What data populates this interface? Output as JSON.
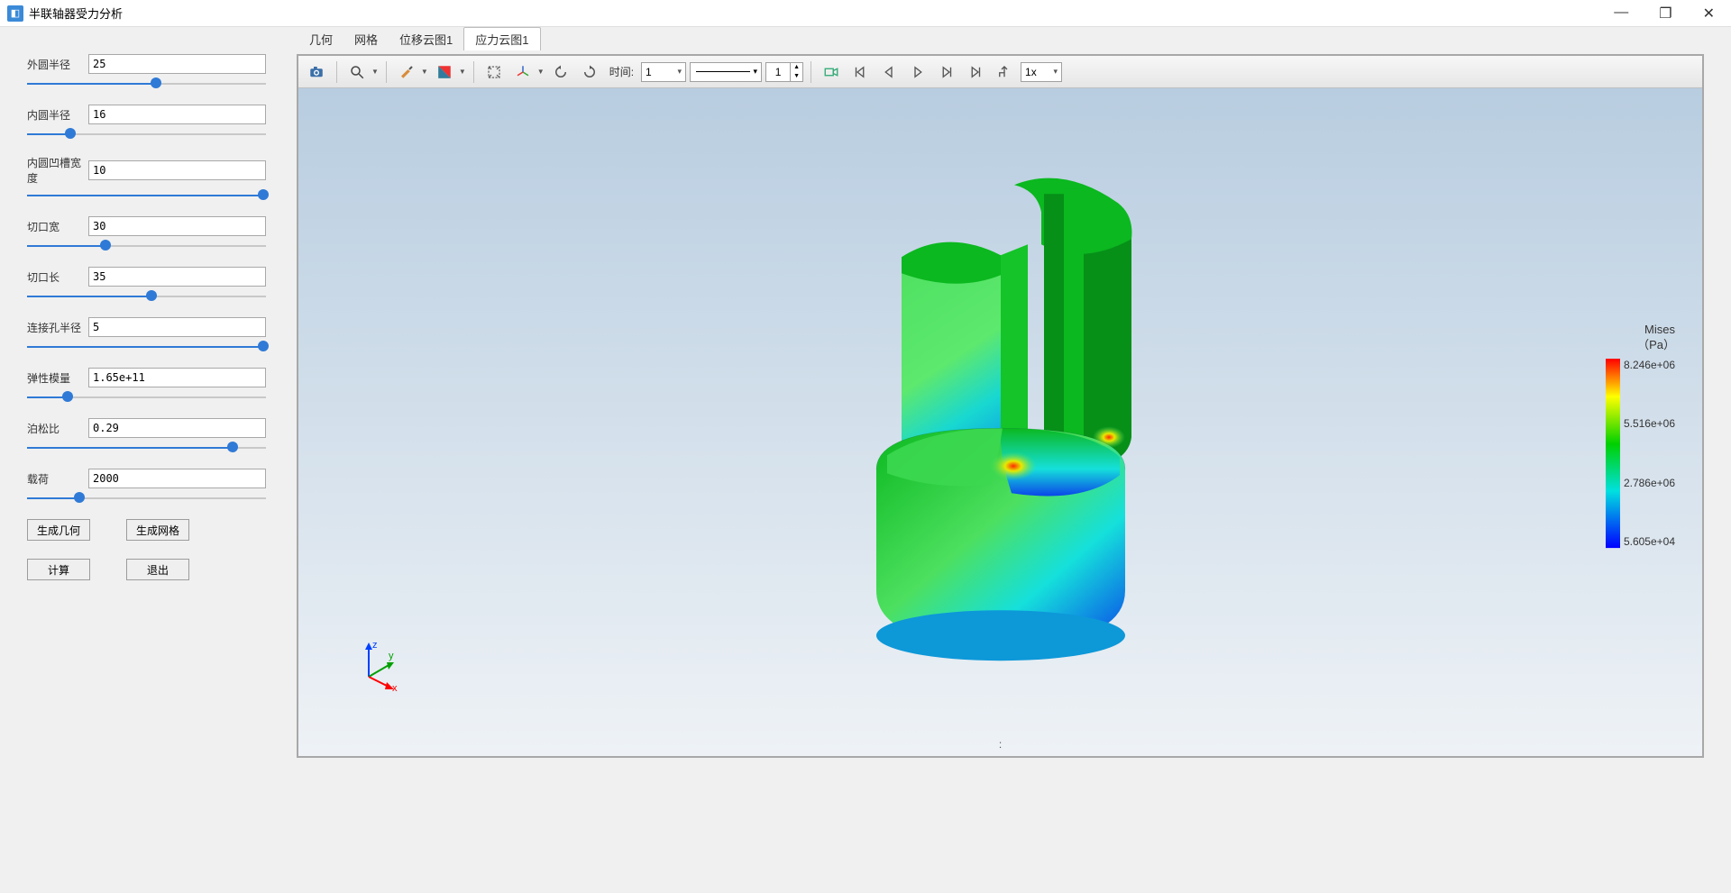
{
  "window": {
    "title": "半联轴器受力分析",
    "minimize": "—",
    "maximize": "❐",
    "close": "✕"
  },
  "sidebar": {
    "params": [
      {
        "label": "外圆半径",
        "value": "25",
        "fill": 0.54
      },
      {
        "label": "内圆半径",
        "value": "16",
        "fill": 0.18
      },
      {
        "label": "内圆凹槽宽度",
        "value": "10",
        "fill": 0.99
      },
      {
        "label": "切口宽",
        "value": "30",
        "fill": 0.33
      },
      {
        "label": "切口长",
        "value": "35",
        "fill": 0.52
      },
      {
        "label": "连接孔半径",
        "value": "5",
        "fill": 0.99
      },
      {
        "label": "弹性模量",
        "value": "1.65e+11",
        "fill": 0.17
      },
      {
        "label": "泊松比",
        "value": "0.29",
        "fill": 0.86
      },
      {
        "label": "载荷",
        "value": "2000",
        "fill": 0.22
      }
    ],
    "buttons": {
      "gen_geom": "生成几何",
      "gen_mesh": "生成网格",
      "compute": "计算",
      "exit": "退出"
    }
  },
  "tabs": {
    "items": [
      {
        "label": "几何",
        "active": false
      },
      {
        "label": "网格",
        "active": false
      },
      {
        "label": "位移云图1",
        "active": false
      },
      {
        "label": "应力云图1",
        "active": true
      }
    ]
  },
  "toolbar": {
    "time_label": "时间:",
    "time_value": "1",
    "spin_value": "1",
    "speed_value": "1x"
  },
  "legend": {
    "title1": "Mises",
    "title2": "（Pa）",
    "ticks": [
      "8.246e+06",
      "5.516e+06",
      "2.786e+06",
      "5.605e+04"
    ]
  },
  "status": ":",
  "triad": {
    "x": "x",
    "y": "y",
    "z": "z"
  },
  "colors": {
    "green": "#0bb81f",
    "green_dark": "#069018",
    "green_light": "#4de060",
    "cyan": "#15e0db",
    "blue": "#0a46e8",
    "yellow": "#e8e800",
    "red": "#ff2a00"
  }
}
